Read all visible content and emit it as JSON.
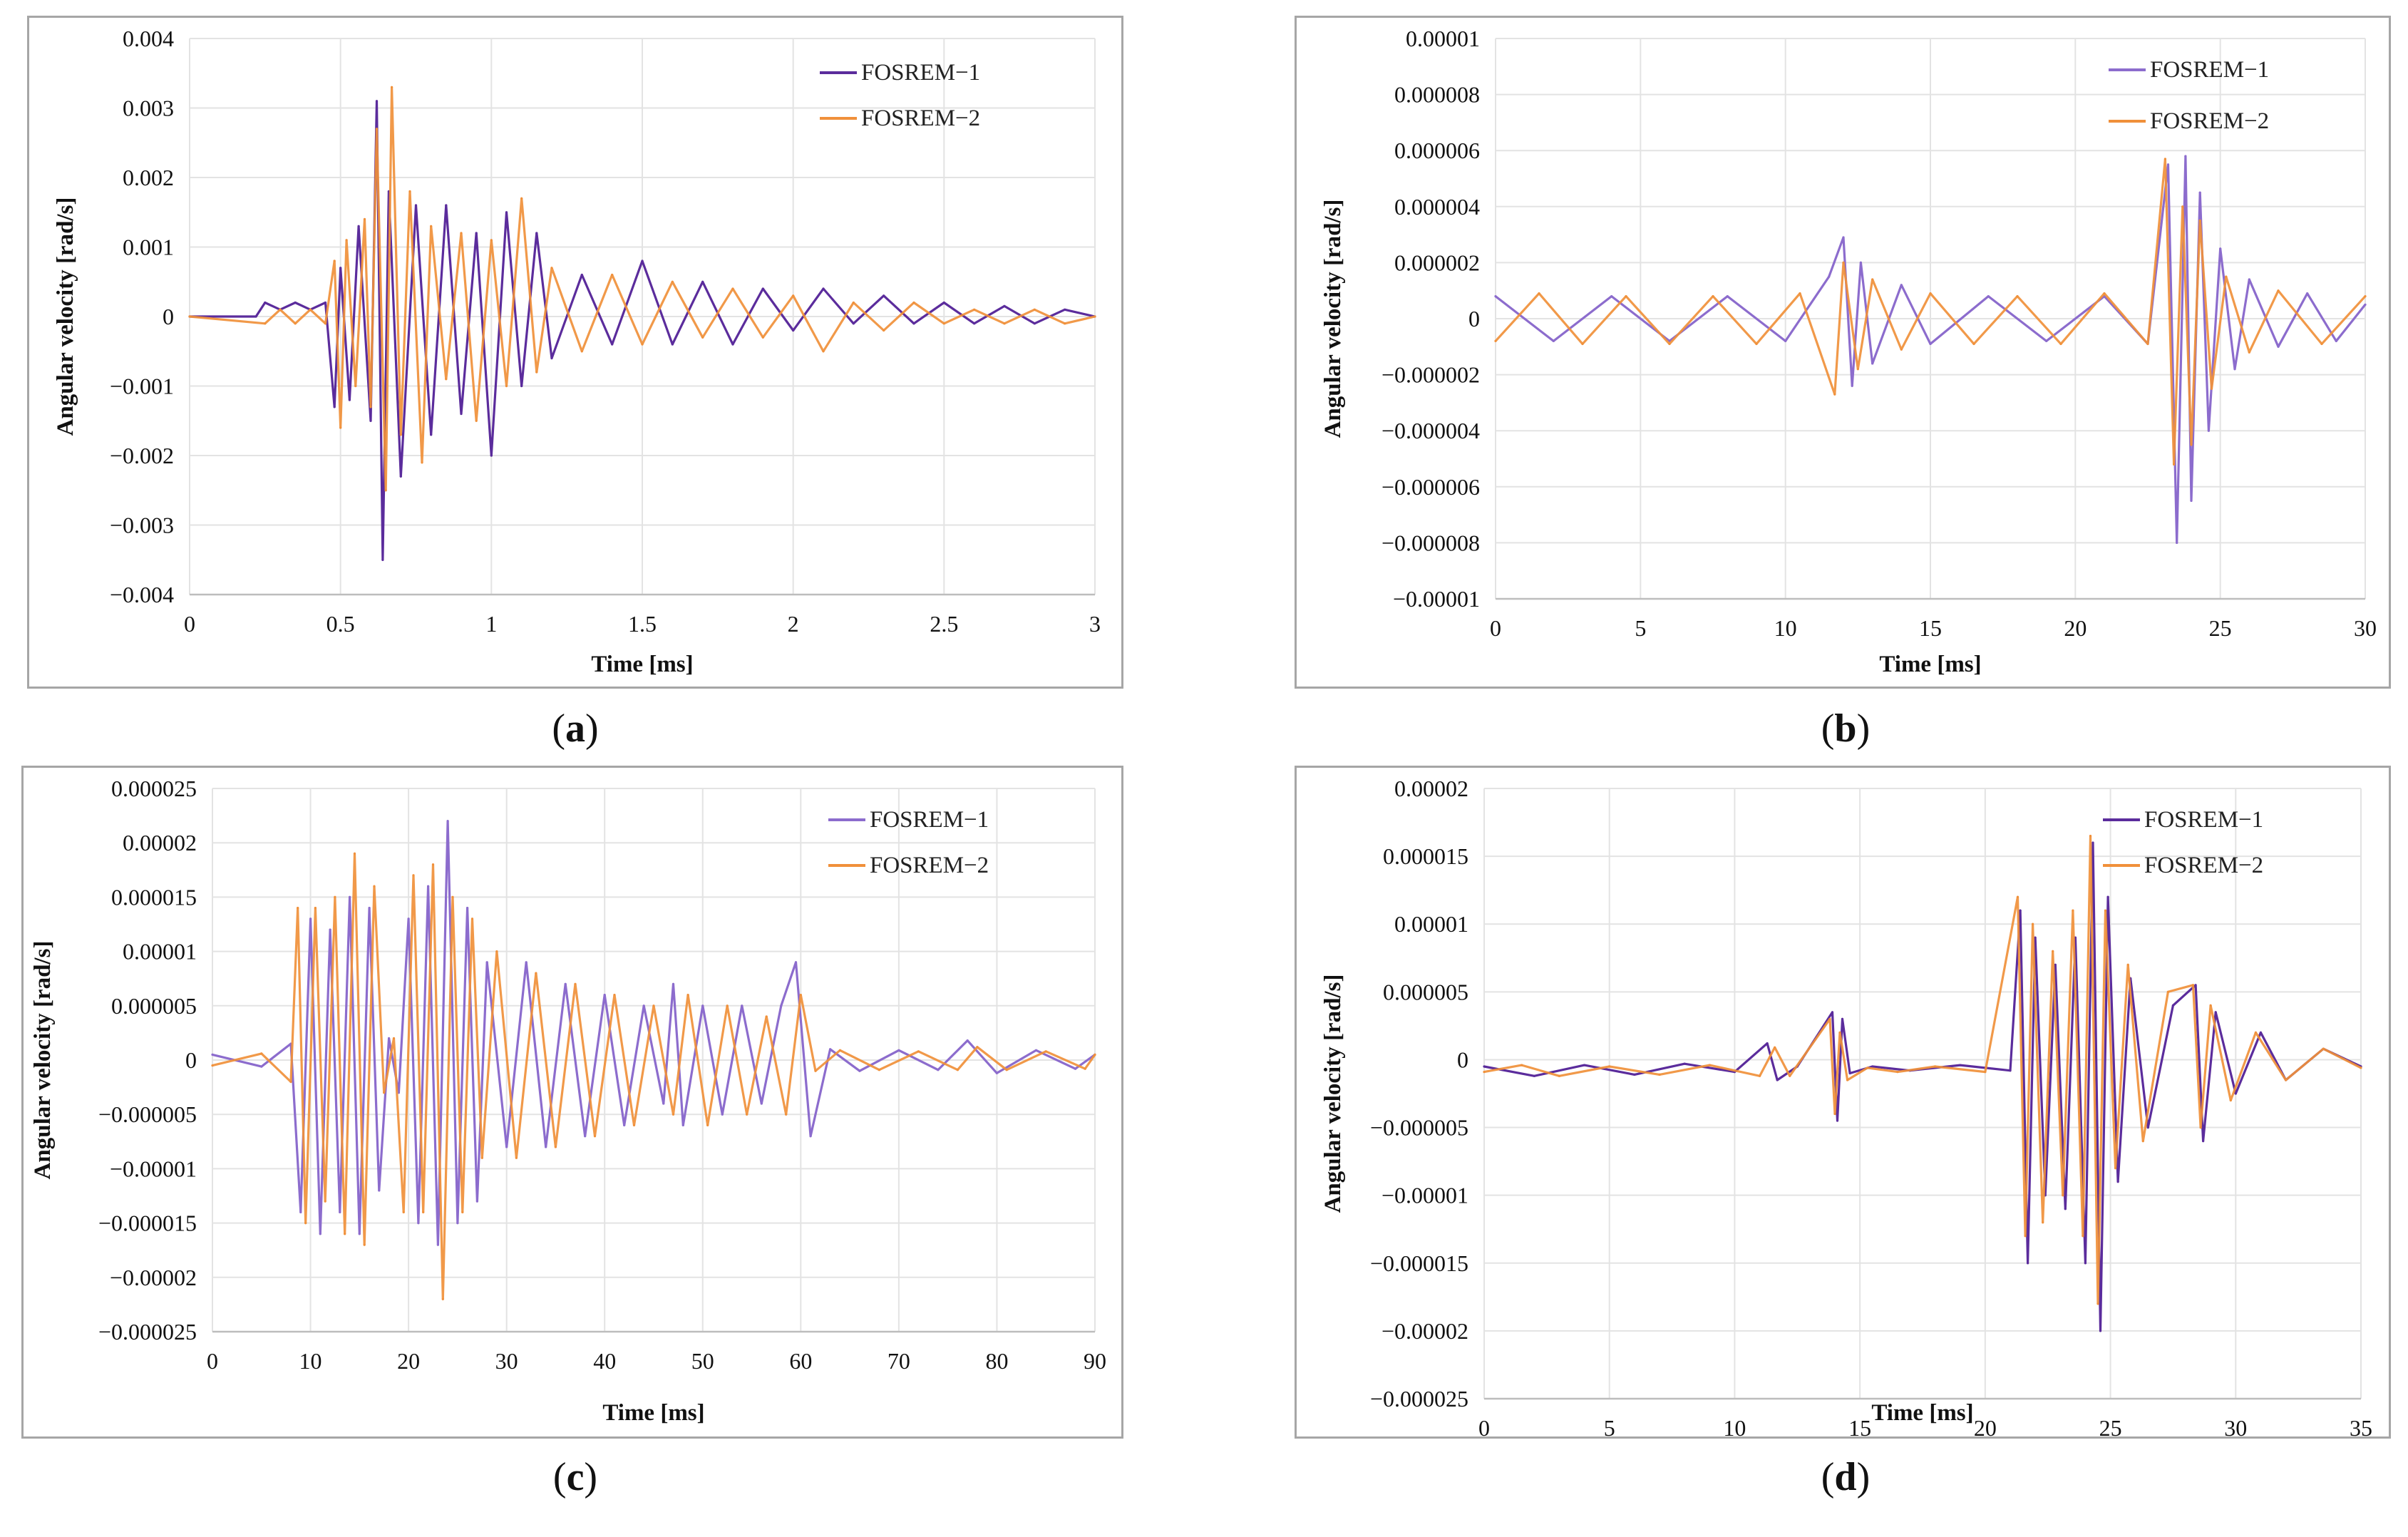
{
  "colors": {
    "series1": "#5b2c9c",
    "series2": "#f0903a",
    "series1_light": "#8c6ccd",
    "frame": "#a6a6a6",
    "grid": "#e3e3e3"
  },
  "chart_data": [
    {
      "id": "a",
      "type": "line",
      "caption": "a",
      "xlabel": "Time [ms]",
      "ylabel": "Angular velocity  [rad/s]",
      "xlim": [
        0,
        3
      ],
      "ylim": [
        -0.004,
        0.004
      ],
      "xticks": [
        "0",
        "0.5",
        "1",
        "1.5",
        "2",
        "2.5",
        "3"
      ],
      "yticks": [
        "0.004",
        "0.003",
        "0.002",
        "0.001",
        "0",
        "−0.001",
        "−0.002",
        "−0.003",
        "−0.004"
      ],
      "legend": {
        "position": "top-right",
        "entries": [
          "FOSREM−1",
          "FOSREM−2"
        ]
      },
      "series": [
        {
          "name": "FOSREM−1",
          "color": "#5b2c9c",
          "x": [
            0,
            0.22,
            0.25,
            0.3,
            0.35,
            0.4,
            0.45,
            0.48,
            0.5,
            0.53,
            0.56,
            0.6,
            0.62,
            0.64,
            0.66,
            0.7,
            0.75,
            0.8,
            0.85,
            0.9,
            0.95,
            1.0,
            1.05,
            1.1,
            1.15,
            1.2,
            1.3,
            1.4,
            1.5,
            1.6,
            1.7,
            1.8,
            1.9,
            2.0,
            2.1,
            2.2,
            2.3,
            2.4,
            2.5,
            2.6,
            2.7,
            2.8,
            2.9,
            3.0
          ],
          "y": [
            0,
            0,
            0.0002,
            0.0001,
            0.0002,
            0.0001,
            0.0002,
            -0.0013,
            0.0007,
            -0.0012,
            0.0013,
            -0.0015,
            0.0031,
            -0.0035,
            0.0018,
            -0.0023,
            0.0016,
            -0.0017,
            0.0016,
            -0.0014,
            0.0012,
            -0.002,
            0.0015,
            -0.001,
            0.0012,
            -0.0006,
            0.0006,
            -0.0004,
            0.0008,
            -0.0004,
            0.0005,
            -0.0004,
            0.0004,
            -0.0002,
            0.0004,
            -0.0001,
            0.0003,
            -0.0001,
            0.0002,
            -0.0001,
            0.00015,
            -0.0001,
            0.0001,
            0.0
          ]
        },
        {
          "name": "FOSREM−2",
          "color": "#f0903a",
          "x": [
            0,
            0.25,
            0.3,
            0.35,
            0.4,
            0.45,
            0.48,
            0.5,
            0.52,
            0.55,
            0.58,
            0.6,
            0.62,
            0.65,
            0.67,
            0.7,
            0.73,
            0.77,
            0.8,
            0.85,
            0.9,
            0.95,
            1.0,
            1.05,
            1.1,
            1.15,
            1.2,
            1.3,
            1.4,
            1.5,
            1.6,
            1.7,
            1.8,
            1.9,
            2.0,
            2.1,
            2.2,
            2.3,
            2.4,
            2.5,
            2.6,
            2.7,
            2.8,
            2.9,
            3.0
          ],
          "y": [
            0,
            -0.0001,
            0.0001,
            -0.0001,
            0.0001,
            -0.0001,
            0.0008,
            -0.0016,
            0.0011,
            -0.001,
            0.0014,
            -0.0013,
            0.0027,
            -0.0025,
            0.0033,
            -0.0017,
            0.0018,
            -0.0021,
            0.0013,
            -0.0009,
            0.0012,
            -0.0015,
            0.0011,
            -0.001,
            0.0017,
            -0.0008,
            0.0007,
            -0.0005,
            0.0006,
            -0.0004,
            0.0005,
            -0.0003,
            0.0004,
            -0.0003,
            0.0003,
            -0.0005,
            0.0002,
            -0.0002,
            0.0002,
            -0.0001,
            0.0001,
            -0.0001,
            0.0001,
            -0.0001,
            0.0
          ]
        }
      ]
    },
    {
      "id": "b",
      "type": "line",
      "caption": "b",
      "xlabel": "Time [ms]",
      "ylabel": "Angular velocity  [rad/s]",
      "xlim": [
        0,
        30
      ],
      "ylim": [
        -1e-05,
        1e-05
      ],
      "xticks": [
        "0",
        "5",
        "10",
        "15",
        "20",
        "25",
        "30"
      ],
      "yticks": [
        "0.00001",
        "0.000008",
        "0.000006",
        "0.000004",
        "0.000002",
        "0",
        "−0.000002",
        "−0.000004",
        "−0.000006",
        "−0.000008",
        "−0.00001"
      ],
      "legend": {
        "position": "top-right",
        "entries": [
          "FOSREM−1",
          "FOSREM−2"
        ]
      },
      "series": [
        {
          "name": "FOSREM−1",
          "color": "#8c6ccd",
          "x": [
            0,
            2,
            4,
            6,
            8,
            10,
            11.5,
            12,
            12.3,
            12.6,
            13,
            14,
            15,
            17,
            19,
            21,
            22.5,
            23.2,
            23.5,
            23.8,
            24.0,
            24.3,
            24.6,
            25,
            25.5,
            26,
            27,
            28,
            29,
            30
          ],
          "y": [
            8e-07,
            -8e-07,
            8e-07,
            -8e-07,
            8e-07,
            -8e-07,
            1.5e-06,
            2.9e-06,
            -2.4e-06,
            2e-06,
            -1.6e-06,
            1.2e-06,
            -9e-07,
            8e-07,
            -8e-07,
            8e-07,
            -9e-07,
            5.5e-06,
            -8e-06,
            5.8e-06,
            -6.5e-06,
            4.5e-06,
            -4e-06,
            2.5e-06,
            -1.8e-06,
            1.4e-06,
            -1e-06,
            9e-07,
            -8e-07,
            5e-07
          ]
        },
        {
          "name": "FOSREM−2",
          "color": "#f0903a",
          "x": [
            0,
            1.5,
            3,
            4.5,
            6,
            7.5,
            9,
            10.5,
            11.7,
            12,
            12.5,
            13,
            14,
            15,
            16.5,
            18,
            19.5,
            21,
            22.5,
            23.1,
            23.4,
            23.7,
            24.0,
            24.3,
            24.7,
            25.2,
            26,
            27,
            28.5,
            30
          ],
          "y": [
            -8e-07,
            9e-07,
            -9e-07,
            8e-07,
            -9e-07,
            8e-07,
            -9e-07,
            9e-07,
            -2.7e-06,
            2e-06,
            -1.8e-06,
            1.4e-06,
            -1.1e-06,
            9e-07,
            -9e-07,
            8e-07,
            -9e-07,
            9e-07,
            -9e-07,
            5.7e-06,
            -5.2e-06,
            4e-06,
            -4.5e-06,
            3.5e-06,
            -2.5e-06,
            1.5e-06,
            -1.2e-06,
            1e-06,
            -9e-07,
            8e-07
          ]
        }
      ]
    },
    {
      "id": "c",
      "type": "line",
      "caption": "c",
      "xlabel": "Time [ms]",
      "ylabel": "Angular velocity  [rad/s]",
      "xlim": [
        0,
        90
      ],
      "ylim": [
        -2.5e-05,
        2.5e-05
      ],
      "xticks": [
        "0",
        "10",
        "20",
        "30",
        "40",
        "50",
        "60",
        "70",
        "80",
        "90"
      ],
      "yticks": [
        "0.000025",
        "0.00002",
        "0.000015",
        "0.00001",
        "0.000005",
        "0",
        "−0.000005",
        "−0.00001",
        "−0.000015",
        "−0.00002",
        "−0.000025"
      ],
      "legend": {
        "position": "top-right",
        "entries": [
          "FOSREM−1",
          "FOSREM−2"
        ]
      },
      "series": [
        {
          "name": "FOSREM−1",
          "color": "#8c6ccd",
          "x": [
            0,
            5,
            8,
            9,
            10,
            11,
            12,
            13,
            14,
            15,
            16,
            17,
            18,
            19,
            20,
            21,
            22,
            23,
            24,
            25,
            26,
            27,
            28,
            30,
            32,
            34,
            36,
            38,
            40,
            42,
            44,
            46,
            47,
            48,
            50,
            52,
            54,
            56,
            58,
            59.5,
            61,
            63,
            66,
            70,
            74,
            77,
            80,
            84,
            88,
            90
          ],
          "y": [
            5e-07,
            -6e-07,
            1.5e-06,
            -1.4e-05,
            1.3e-05,
            -1.6e-05,
            1.2e-05,
            -1.4e-05,
            1.5e-05,
            -1.6e-05,
            1.4e-05,
            -1.2e-05,
            2e-06,
            -3e-06,
            1.3e-05,
            -1.5e-05,
            1.6e-05,
            -1.7e-05,
            2.2e-05,
            -1.5e-05,
            1.4e-05,
            -1.3e-05,
            9e-06,
            -8e-06,
            9e-06,
            -8e-06,
            7e-06,
            -7e-06,
            6e-06,
            -6e-06,
            5e-06,
            -4e-06,
            7e-06,
            -6e-06,
            5e-06,
            -5e-06,
            5e-06,
            -4e-06,
            5e-06,
            9e-06,
            -7e-06,
            1e-06,
            -1e-06,
            9e-07,
            -9e-07,
            1.8e-06,
            -1.2e-06,
            9e-07,
            -8e-07,
            5e-07
          ]
        },
        {
          "name": "FOSREM−2",
          "color": "#f0903a",
          "x": [
            0,
            5,
            8,
            8.7,
            9.5,
            10.5,
            11.5,
            12.5,
            13.5,
            14.5,
            15.5,
            16.5,
            17.5,
            18.5,
            19.5,
            20.5,
            21.5,
            22.5,
            23.5,
            24.5,
            25.5,
            26.5,
            27.5,
            29,
            31,
            33,
            35,
            37,
            39,
            41,
            43,
            45,
            47,
            48.5,
            50.5,
            52.5,
            54.5,
            56.5,
            58.5,
            60,
            61.5,
            64,
            68,
            72,
            76,
            78,
            81,
            85,
            89,
            90
          ],
          "y": [
            -5e-07,
            6e-07,
            -2e-06,
            1.4e-05,
            -1.5e-05,
            1.4e-05,
            -1.3e-05,
            1.5e-05,
            -1.6e-05,
            1.9e-05,
            -1.7e-05,
            1.6e-05,
            -3e-06,
            2e-06,
            -1.4e-05,
            1.7e-05,
            -1.4e-05,
            1.8e-05,
            -2.2e-05,
            1.5e-05,
            -1.4e-05,
            1.3e-05,
            -9e-06,
            1e-05,
            -9e-06,
            8e-06,
            -8e-06,
            7e-06,
            -7e-06,
            6e-06,
            -6e-06,
            5e-06,
            -5e-06,
            6e-06,
            -6e-06,
            5e-06,
            -5e-06,
            4e-06,
            -5e-06,
            6e-06,
            -1e-06,
            9e-07,
            -9e-07,
            8e-07,
            -9e-07,
            1.2e-06,
            -9e-07,
            8e-07,
            -8e-07,
            5e-07
          ]
        }
      ]
    },
    {
      "id": "d",
      "type": "line",
      "caption": "d",
      "xlabel": "Time [ms]",
      "ylabel": "Angular velocity  [rad/s]",
      "xlim": [
        0,
        35
      ],
      "ylim": [
        -2.5e-05,
        2e-05
      ],
      "xticks": [
        "0",
        "5",
        "10",
        "15",
        "20",
        "25",
        "30",
        "35"
      ],
      "yticks": [
        "0.00002",
        "0.000015",
        "0.00001",
        "0.000005",
        "0",
        "−0.000005",
        "−0.00001",
        "−0.000015",
        "−0.00002",
        "−0.000025"
      ],
      "legend": {
        "position": "top-right",
        "entries": [
          "FOSREM−1",
          "FOSREM−2"
        ]
      },
      "series": [
        {
          "name": "FOSREM−1",
          "color": "#5b2c9c",
          "x": [
            0,
            2,
            4,
            6,
            8,
            10,
            11.3,
            11.7,
            12.5,
            13.9,
            14.1,
            14.3,
            14.6,
            15.5,
            17,
            19,
            21,
            21.4,
            21.7,
            22.0,
            22.4,
            22.8,
            23.2,
            23.6,
            24.0,
            24.3,
            24.6,
            24.9,
            25.3,
            25.8,
            26.5,
            27.5,
            28.4,
            28.7,
            29.2,
            30,
            31,
            32,
            33.5,
            35
          ],
          "y": [
            -5e-07,
            -1.2e-06,
            -4e-07,
            -1.1e-06,
            -3e-07,
            -9e-07,
            1.2e-06,
            -1.5e-06,
            -5e-07,
            3.5e-06,
            -4.5e-06,
            3e-06,
            -1e-06,
            -5e-07,
            -8e-07,
            -4e-07,
            -8e-07,
            1.1e-05,
            -1.5e-05,
            9e-06,
            -1e-05,
            7e-06,
            -1.1e-05,
            9e-06,
            -1.5e-05,
            1.6e-05,
            -2e-05,
            1.2e-05,
            -9e-06,
            6e-06,
            -5e-06,
            4e-06,
            5.5e-06,
            -6e-06,
            3.5e-06,
            -2.5e-06,
            2e-06,
            -1.5e-06,
            8e-07,
            -5e-07
          ]
        },
        {
          "name": "FOSREM−2",
          "color": "#f0903a",
          "x": [
            0,
            1.5,
            3,
            5,
            7,
            9,
            11,
            11.6,
            12.2,
            13.8,
            14.0,
            14.2,
            14.5,
            15.3,
            16.5,
            18,
            20,
            21.3,
            21.6,
            21.9,
            22.3,
            22.7,
            23.1,
            23.5,
            23.9,
            24.2,
            24.5,
            24.8,
            25.2,
            25.7,
            26.3,
            27.3,
            28.3,
            28.6,
            29.0,
            29.8,
            30.8,
            32,
            33.5,
            35
          ],
          "y": [
            -9e-07,
            -4e-07,
            -1.2e-06,
            -5e-07,
            -1.1e-06,
            -4e-07,
            -1.2e-06,
            9e-07,
            -1.2e-06,
            3e-06,
            -4e-06,
            2e-06,
            -1.5e-06,
            -6e-07,
            -9e-07,
            -5e-07,
            -9e-07,
            1.2e-05,
            -1.3e-05,
            1e-05,
            -1.2e-05,
            8e-06,
            -1e-05,
            1.1e-05,
            -1.3e-05,
            1.65e-05,
            -1.8e-05,
            1.1e-05,
            -8e-06,
            7e-06,
            -6e-06,
            5e-06,
            5.5e-06,
            -5e-06,
            4e-06,
            -3e-06,
            2e-06,
            -1.5e-06,
            8e-07,
            -6e-07
          ]
        }
      ]
    }
  ]
}
